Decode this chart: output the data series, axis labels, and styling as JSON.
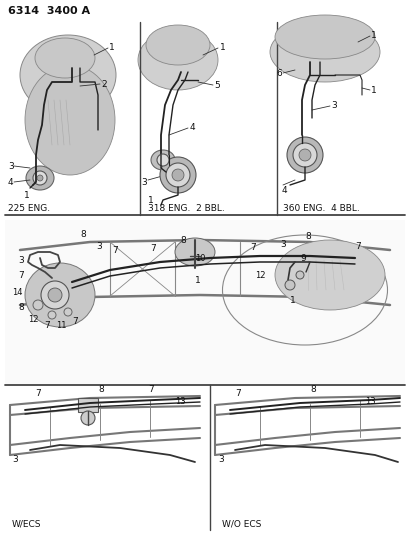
{
  "title": "6314  3400 A",
  "background_color": "#ffffff",
  "line_color": "#333333",
  "text_color": "#111111",
  "border_color": "#444444",
  "gray_fill": "#cccccc",
  "dark_gray": "#888888",
  "mid_gray": "#aaaaaa",
  "labels": {
    "panel1": "225 ENG.",
    "panel2": "318 ENG.  2 BBL.",
    "panel3": "360 ENG.  4 BBL.",
    "panel4_left": "W/ECS",
    "panel4_right": "W/O ECS"
  },
  "figsize": [
    4.1,
    5.33
  ],
  "dpi": 100
}
